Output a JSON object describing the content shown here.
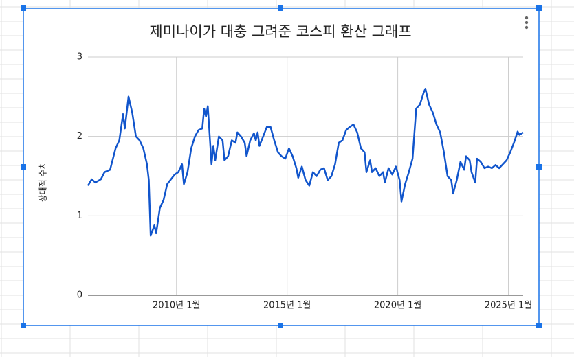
{
  "chart_data": {
    "type": "line",
    "title": "제미나이가 대충 그려준 코스피 환산 그래프",
    "ylabel": "상대적 수치",
    "x": [
      "2006-01",
      "2006-03",
      "2006-05",
      "2006-08",
      "2006-10",
      "2007-01",
      "2007-04",
      "2007-06",
      "2007-08",
      "2007-09",
      "2007-11",
      "2008-01",
      "2008-03",
      "2008-05",
      "2008-07",
      "2008-09",
      "2008-10",
      "2008-11",
      "2009-01",
      "2009-02",
      "2009-04",
      "2009-06",
      "2009-08",
      "2009-10",
      "2009-12",
      "2010-02",
      "2010-04",
      "2010-05",
      "2010-07",
      "2010-09",
      "2010-11",
      "2011-01",
      "2011-03",
      "2011-04",
      "2011-05",
      "2011-06",
      "2011-08",
      "2011-09",
      "2011-10",
      "2011-12",
      "2012-02",
      "2012-03",
      "2012-05",
      "2012-07",
      "2012-09",
      "2012-10",
      "2012-12",
      "2013-02",
      "2013-03",
      "2013-05",
      "2013-07",
      "2013-08",
      "2013-09",
      "2013-10",
      "2013-12",
      "2014-02",
      "2014-04",
      "2014-06",
      "2014-08",
      "2014-10",
      "2014-12",
      "2015-02",
      "2015-04",
      "2015-06",
      "2015-07",
      "2015-09",
      "2015-11",
      "2016-01",
      "2016-03",
      "2016-05",
      "2016-07",
      "2016-09",
      "2016-11",
      "2017-01",
      "2017-03",
      "2017-05",
      "2017-07",
      "2017-09",
      "2017-11",
      "2018-01",
      "2018-03",
      "2018-05",
      "2018-07",
      "2018-08",
      "2018-10",
      "2018-11",
      "2019-01",
      "2019-03",
      "2019-05",
      "2019-06",
      "2019-08",
      "2019-10",
      "2019-12",
      "2020-02",
      "2020-03",
      "2020-05",
      "2020-07",
      "2020-09",
      "2020-11",
      "2021-01",
      "2021-03",
      "2021-04",
      "2021-06",
      "2021-08",
      "2021-10",
      "2021-12",
      "2022-02",
      "2022-04",
      "2022-06",
      "2022-07",
      "2022-09",
      "2022-11",
      "2023-01",
      "2023-02",
      "2023-04",
      "2023-05",
      "2023-07",
      "2023-08",
      "2023-10",
      "2023-12",
      "2024-02",
      "2024-04",
      "2024-06",
      "2024-08",
      "2024-10",
      "2024-12",
      "2025-02",
      "2025-04",
      "2025-06",
      "2025-07",
      "2025-09"
    ],
    "series": [
      {
        "name": "코스피",
        "color": "#1155cc",
        "values": [
          1.38,
          1.46,
          1.42,
          1.46,
          1.55,
          1.58,
          1.85,
          1.95,
          2.28,
          2.1,
          2.5,
          2.3,
          2.0,
          1.95,
          1.85,
          1.65,
          1.45,
          0.75,
          0.88,
          0.78,
          1.1,
          1.2,
          1.4,
          1.46,
          1.52,
          1.55,
          1.65,
          1.4,
          1.55,
          1.85,
          2.0,
          2.08,
          2.1,
          2.35,
          2.25,
          2.38,
          1.65,
          1.88,
          1.7,
          2.0,
          1.95,
          1.7,
          1.75,
          1.95,
          1.92,
          2.05,
          2.0,
          1.92,
          1.75,
          1.95,
          2.04,
          1.95,
          2.05,
          1.88,
          2.0,
          2.12,
          2.12,
          1.95,
          1.8,
          1.75,
          1.72,
          1.85,
          1.75,
          1.6,
          1.48,
          1.62,
          1.45,
          1.38,
          1.55,
          1.5,
          1.58,
          1.6,
          1.45,
          1.5,
          1.65,
          1.92,
          1.95,
          2.08,
          2.12,
          2.15,
          2.05,
          1.85,
          1.8,
          1.55,
          1.7,
          1.55,
          1.6,
          1.5,
          1.55,
          1.42,
          1.6,
          1.52,
          1.62,
          1.45,
          1.18,
          1.4,
          1.55,
          1.72,
          2.35,
          2.4,
          2.55,
          2.6,
          2.4,
          2.3,
          2.15,
          2.05,
          1.8,
          1.5,
          1.45,
          1.28,
          1.45,
          1.68,
          1.58,
          1.75,
          1.7,
          1.55,
          1.42,
          1.72,
          1.68,
          1.6,
          1.62,
          1.6,
          1.64,
          1.6,
          1.65,
          1.7,
          1.8,
          1.92,
          2.06,
          2.02,
          2.05
        ]
      }
    ],
    "xlim": [
      "2006-01",
      "2025-09"
    ],
    "xticks": [
      {
        "value": "2010-01",
        "label": "2010년 1월"
      },
      {
        "value": "2015-01",
        "label": "2015년 1월"
      },
      {
        "value": "2020-01",
        "label": "2020년 1월"
      },
      {
        "value": "2025-01",
        "label": "2025년 1월"
      }
    ],
    "ylim": [
      0,
      3
    ],
    "yticks": [
      0,
      1,
      2,
      3
    ],
    "grid": true
  }
}
